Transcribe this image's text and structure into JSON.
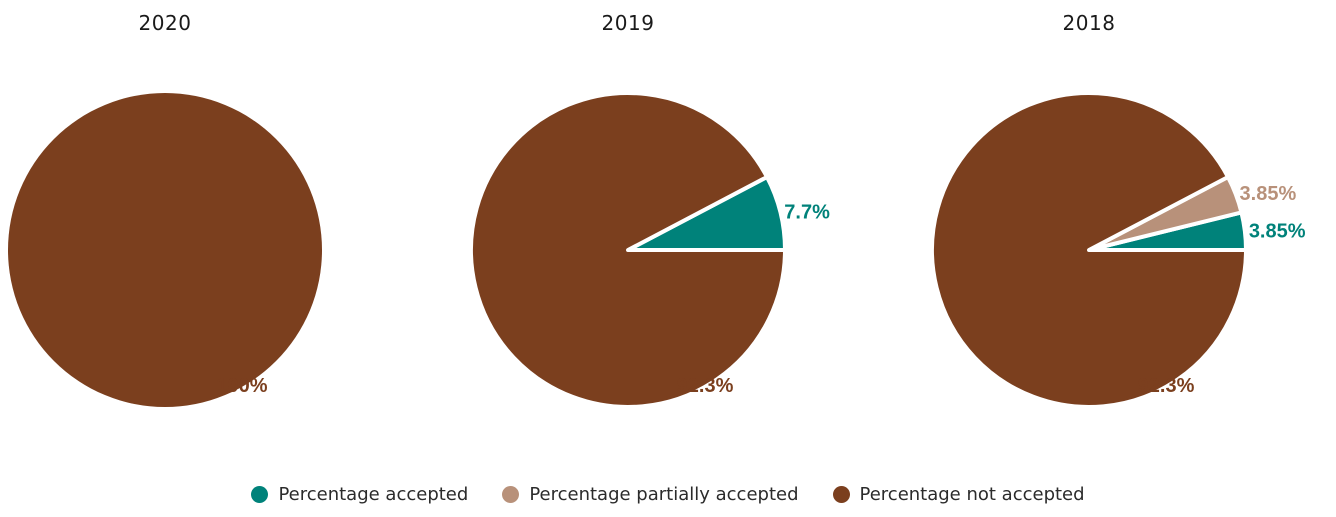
{
  "chart_data": [
    {
      "type": "pie",
      "title": "2020",
      "slices": [
        {
          "name": "Percentage not accepted",
          "value": 100,
          "label": "100%",
          "color": "#7b3f1e"
        }
      ]
    },
    {
      "type": "pie",
      "title": "2019",
      "slices": [
        {
          "name": "Percentage accepted",
          "value": 7.7,
          "label": "7.7%",
          "color": "#00827a"
        },
        {
          "name": "Percentage not accepted",
          "value": 92.3,
          "label": "92.3%",
          "color": "#7b3f1e"
        }
      ]
    },
    {
      "type": "pie",
      "title": "2018",
      "slices": [
        {
          "name": "Percentage accepted",
          "value": 3.85,
          "label": "3.85%",
          "color": "#00827a"
        },
        {
          "name": "Percentage partially accepted",
          "value": 3.85,
          "label": "3.85%",
          "color": "#b8917a"
        },
        {
          "name": "Percentage not accepted",
          "value": 92.3,
          "label": "92.3%",
          "color": "#7b3f1e"
        }
      ]
    }
  ],
  "legend": [
    {
      "label": "Percentage accepted",
      "color": "#00827a"
    },
    {
      "label": "Percentage partially accepted",
      "color": "#b8917a"
    },
    {
      "label": "Percentage not accepted",
      "color": "#7b3f1e"
    }
  ],
  "legend_placement": "bottom-center"
}
